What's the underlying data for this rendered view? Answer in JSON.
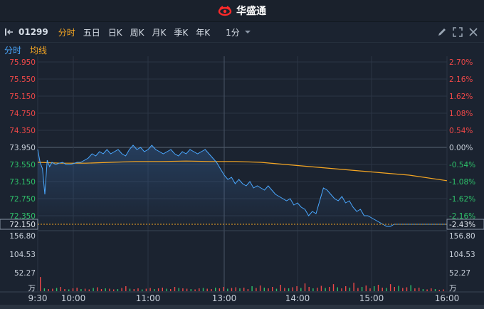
{
  "brand": {
    "logo_icon": "huasheng-logo-icon",
    "name": "华盛通"
  },
  "toolbar": {
    "symbol": "01299",
    "tabs": [
      {
        "label": "分时",
        "active": true
      },
      {
        "label": "五日",
        "active": false
      },
      {
        "label": "日K",
        "active": false
      },
      {
        "label": "周K",
        "active": false
      },
      {
        "label": "月K",
        "active": false
      },
      {
        "label": "季K",
        "active": false
      },
      {
        "label": "年K",
        "active": false
      }
    ],
    "interval": "1分",
    "tool_icons": [
      "pencil-icon",
      "expand-icon",
      "close-icon"
    ]
  },
  "indicators": {
    "line": "分时",
    "avg": "均线"
  },
  "colors": {
    "bg": "#1b2330",
    "price_line": "#4aa8ff",
    "avg_line": "#f5a623",
    "up": "#f04848",
    "down": "#2ec26a",
    "grid": "#2b3544",
    "label": "#c8d0da"
  },
  "chart_data": {
    "type": "line",
    "price_ticks": [
      "75.950",
      "75.550",
      "75.150",
      "74.750",
      "74.350",
      "73.950",
      "73.550",
      "73.150",
      "72.750",
      "72.350"
    ],
    "pct_ticks": [
      "2.70%",
      "2.16%",
      "1.62%",
      "1.08%",
      "0.54%",
      "0.00%",
      "-0.54%",
      "-1.08%",
      "-1.62%",
      "-2.16%"
    ],
    "prev_close": 73.95,
    "ylim": [
      72.15,
      75.95
    ],
    "current_price": "72.150",
    "current_pct": "-2.43%",
    "time_labels": [
      "9:30",
      "10:00",
      "11:00",
      "13:00",
      "14:00",
      "15:00",
      "16:00"
    ],
    "volume_ticks": [
      "156.80",
      "104.53",
      "52.27"
    ],
    "volume_unit": "万",
    "volume_max": 156.8,
    "series": [
      {
        "x": [
          0,
          2,
          4,
          6,
          8,
          10,
          12,
          15,
          18,
          21,
          24,
          27,
          30,
          33,
          36,
          39,
          42,
          45,
          48,
          51,
          54,
          57,
          60,
          63,
          66,
          69,
          72,
          75,
          78,
          81,
          84,
          87,
          90,
          93,
          96,
          99,
          102,
          105,
          108,
          111,
          114,
          117,
          120,
          123,
          126,
          129,
          132,
          135,
          138,
          141,
          144,
          147,
          150,
          153,
          156,
          159,
          162,
          165,
          168,
          171,
          174,
          177,
          180,
          183,
          186,
          189,
          192,
          195,
          198,
          201,
          204,
          207,
          210,
          213,
          216,
          219,
          222,
          225,
          228,
          231,
          234,
          237,
          240,
          243,
          246,
          249,
          252,
          255,
          258,
          261,
          264,
          267,
          270,
          273,
          276,
          279,
          282,
          285,
          288,
          291,
          294,
          297,
          300,
          303,
          306,
          309,
          312,
          315,
          318,
          321,
          324,
          327,
          330
        ],
        "values": [
          73.9,
          73.6,
          73.45,
          72.85,
          73.65,
          73.5,
          73.6,
          73.55,
          73.58,
          73.6,
          73.55,
          73.55,
          73.57,
          73.6,
          73.6,
          73.65,
          73.7,
          73.8,
          73.75,
          73.85,
          73.8,
          73.9,
          73.8,
          73.85,
          73.9,
          73.8,
          73.75,
          73.9,
          74.0,
          73.9,
          73.95,
          73.85,
          73.9,
          74.0,
          73.9,
          73.85,
          73.8,
          73.85,
          73.9,
          73.8,
          73.75,
          73.85,
          73.8,
          73.9,
          73.85,
          73.8,
          73.85,
          73.9,
          73.8,
          73.7,
          73.6,
          73.45,
          73.3,
          73.2,
          73.25,
          73.1,
          73.2,
          73.1,
          73.05,
          73.15,
          73.0,
          73.05,
          73.0,
          72.95,
          73.05,
          72.95,
          72.85,
          72.8,
          72.75,
          72.7,
          72.75,
          72.6,
          72.65,
          72.55,
          72.5,
          72.35,
          72.45,
          72.4,
          72.7,
          73.0,
          72.95,
          72.85,
          72.75,
          72.7,
          72.8,
          72.65,
          72.7,
          72.55,
          72.45,
          72.5,
          72.35,
          72.35,
          72.3,
          72.25,
          72.2,
          72.15,
          72.1,
          72.1,
          72.15,
          72.15,
          72.15,
          72.15,
          72.15,
          72.15,
          72.15,
          72.15,
          72.15,
          72.15,
          72.15,
          72.15,
          72.15,
          72.15,
          72.15
        ]
      },
      {
        "x": [
          0,
          20,
          40,
          60,
          80,
          100,
          120,
          140,
          160,
          180,
          200,
          220,
          240,
          260,
          280,
          300,
          330
        ],
        "values": [
          73.6,
          73.58,
          73.58,
          73.6,
          73.62,
          73.62,
          73.63,
          73.62,
          73.62,
          73.6,
          73.55,
          73.5,
          73.45,
          73.4,
          73.35,
          73.3,
          73.17
        ]
      }
    ],
    "volume": [
      40,
      8,
      6,
      7,
      9,
      12,
      6,
      5,
      8,
      10,
      6,
      7,
      5,
      9,
      11,
      6,
      8,
      7,
      5,
      6,
      9,
      14,
      7,
      6,
      8,
      5,
      7,
      9,
      6,
      8,
      10,
      7,
      6,
      12,
      9,
      8,
      7,
      6,
      5,
      8,
      9,
      7,
      6,
      10,
      8,
      12,
      7,
      9,
      11,
      8,
      10,
      6,
      14,
      9,
      16,
      10,
      8,
      12,
      7,
      18,
      9,
      8,
      11,
      14,
      9,
      22,
      12,
      8,
      10,
      15,
      9,
      12,
      20,
      11,
      8,
      14,
      10,
      24,
      9,
      12,
      16,
      8,
      14,
      18,
      10,
      9,
      20,
      12,
      15,
      9,
      11,
      17,
      8,
      10,
      6,
      5,
      8,
      6,
      4,
      5
    ]
  }
}
